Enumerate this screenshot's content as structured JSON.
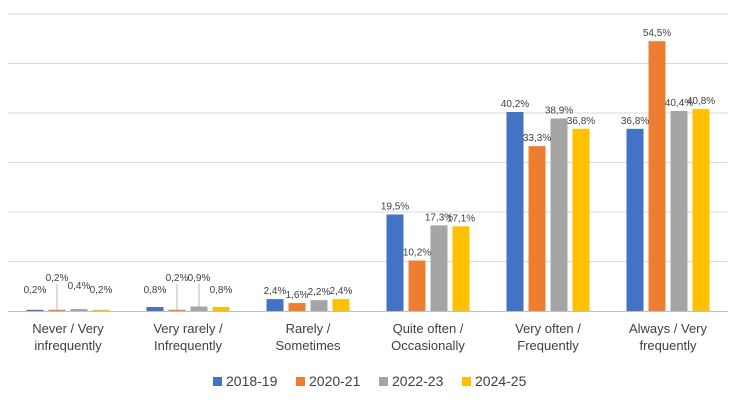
{
  "chart_data": {
    "type": "bar",
    "title": "",
    "xlabel": "",
    "ylabel": "",
    "ylim": [
      0,
      60
    ],
    "grid": true,
    "legend_position": "bottom",
    "categories": [
      [
        "Never / Very",
        "infrequently"
      ],
      [
        "Very rarely /",
        "Infrequently"
      ],
      [
        "Rarely /",
        "Sometimes"
      ],
      [
        "Quite often /",
        "Occasionally"
      ],
      [
        "Very often /",
        "Frequently"
      ],
      [
        "Always / Very",
        "frequently"
      ]
    ],
    "series": [
      {
        "name": "2018-19",
        "color": "#4472C4",
        "values": [
          0.2,
          0.8,
          2.4,
          19.5,
          40.2,
          36.8
        ],
        "labels": [
          "0,2%",
          "0,8%",
          "2,4%",
          "19,5%",
          "40,2%",
          "36,8%"
        ]
      },
      {
        "name": "2020-21",
        "color": "#ED7D31",
        "values": [
          0.2,
          0.2,
          1.6,
          10.2,
          33.3,
          54.5
        ],
        "labels": [
          "0,2%",
          "0,2%",
          "1,6%",
          "10,2%",
          "33,3%",
          "54,5%"
        ]
      },
      {
        "name": "2022-23",
        "color": "#A5A5A5",
        "values": [
          0.4,
          0.9,
          2.2,
          17.3,
          38.9,
          40.4
        ],
        "labels": [
          "0,4%",
          "0,9%",
          "2,2%",
          "17,3%",
          "38,9%",
          "40,4%"
        ]
      },
      {
        "name": "2024-25",
        "color": "#FFC000",
        "values": [
          0.2,
          0.8,
          2.4,
          17.1,
          36.8,
          40.8
        ],
        "labels": [
          "0,2%",
          "0,8%",
          "2,4%",
          "17,1%",
          "36,8%",
          "40,8%"
        ]
      }
    ]
  }
}
